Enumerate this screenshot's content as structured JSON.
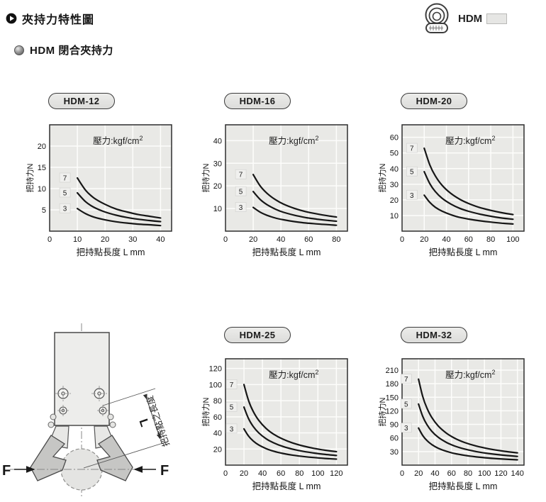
{
  "page": {
    "header": {
      "title": "夾持力特性圖"
    },
    "brand": {
      "name": "HDM"
    },
    "section": {
      "title": "HDM 閉合夾持力"
    }
  },
  "diagram": {
    "force_label_left": "F",
    "force_label_right": "F",
    "dim_label": "L",
    "dim_text": "把持點之長度"
  },
  "chart_data": [
    {
      "type": "line",
      "title": "HDM-12",
      "annotation": "壓力:kgf/cm",
      "annotation_sup": "2",
      "xlabel": "把持點長度 L mm",
      "ylabel": "把持力N",
      "xlim": [
        0,
        44
      ],
      "ylim": [
        0,
        25
      ],
      "x_ticks": [
        0,
        10,
        20,
        30,
        40
      ],
      "y_ticks": [
        5,
        10,
        15,
        20
      ],
      "grid": true,
      "legend_note": "curve labels are pressure in kgf/cm2",
      "series": [
        {
          "name": "7",
          "points": [
            [
              10,
              12.5
            ],
            [
              13,
              9.6
            ],
            [
              16,
              7.8
            ],
            [
              20,
              6.3
            ],
            [
              24,
              5.2
            ],
            [
              28,
              4.5
            ],
            [
              32,
              3.9
            ],
            [
              36,
              3.5
            ],
            [
              40,
              3.1
            ]
          ]
        },
        {
          "name": "5",
          "points": [
            [
              10,
              9.0
            ],
            [
              13,
              6.9
            ],
            [
              16,
              5.6
            ],
            [
              20,
              4.5
            ],
            [
              24,
              3.75
            ],
            [
              28,
              3.2
            ],
            [
              32,
              2.8
            ],
            [
              36,
              2.5
            ],
            [
              40,
              2.25
            ]
          ]
        },
        {
          "name": "3",
          "points": [
            [
              10,
              5.3
            ],
            [
              13,
              4.1
            ],
            [
              16,
              3.3
            ],
            [
              20,
              2.65
            ],
            [
              24,
              2.2
            ],
            [
              28,
              1.9
            ],
            [
              32,
              1.65
            ],
            [
              36,
              1.5
            ],
            [
              40,
              1.3
            ]
          ]
        }
      ]
    },
    {
      "type": "line",
      "title": "HDM-16",
      "annotation": "壓力:kgf/cm",
      "annotation_sup": "2",
      "xlabel": "把持點長度 L mm",
      "ylabel": "把持力N",
      "xlim": [
        0,
        88
      ],
      "ylim": [
        0,
        47
      ],
      "x_ticks": [
        0,
        20,
        40,
        60,
        80
      ],
      "y_ticks": [
        10,
        20,
        30,
        40
      ],
      "grid": true,
      "series": [
        {
          "name": "7",
          "points": [
            [
              20,
              25
            ],
            [
              25,
              20
            ],
            [
              30,
              16.7
            ],
            [
              36,
              13.9
            ],
            [
              42,
              11.9
            ],
            [
              50,
              10
            ],
            [
              58,
              8.6
            ],
            [
              66,
              7.6
            ],
            [
              73,
              6.85
            ],
            [
              80,
              6.25
            ]
          ]
        },
        {
          "name": "5",
          "points": [
            [
              20,
              17.5
            ],
            [
              25,
              14
            ],
            [
              30,
              11.7
            ],
            [
              36,
              9.7
            ],
            [
              42,
              8.3
            ],
            [
              50,
              7
            ],
            [
              58,
              6
            ],
            [
              66,
              5.3
            ],
            [
              73,
              4.8
            ],
            [
              80,
              4.4
            ]
          ]
        },
        {
          "name": "3",
          "points": [
            [
              20,
              10.5
            ],
            [
              25,
              8.4
            ],
            [
              30,
              7
            ],
            [
              36,
              5.8
            ],
            [
              42,
              5
            ],
            [
              50,
              4.2
            ],
            [
              58,
              3.6
            ],
            [
              66,
              3.2
            ],
            [
              73,
              2.9
            ],
            [
              80,
              2.6
            ]
          ]
        }
      ]
    },
    {
      "type": "line",
      "title": "HDM-20",
      "annotation": "壓力:kgf/cm",
      "annotation_sup": "2",
      "xlabel": "把持點長度 L mm",
      "ylabel": "把持力N",
      "xlim": [
        0,
        110
      ],
      "ylim": [
        0,
        68
      ],
      "x_ticks": [
        0,
        20,
        40,
        60,
        80,
        100
      ],
      "y_ticks": [
        10,
        20,
        30,
        40,
        50,
        60
      ],
      "grid": true,
      "series": [
        {
          "name": "7",
          "points": [
            [
              20,
              53
            ],
            [
              25,
              42.4
            ],
            [
              30,
              35.3
            ],
            [
              36,
              29.4
            ],
            [
              44,
              24.1
            ],
            [
              52,
              20.4
            ],
            [
              60,
              17.7
            ],
            [
              70,
              15.1
            ],
            [
              80,
              13.3
            ],
            [
              90,
              11.8
            ],
            [
              100,
              10.6
            ]
          ]
        },
        {
          "name": "5",
          "points": [
            [
              20,
              38
            ],
            [
              25,
              30.4
            ],
            [
              30,
              25.3
            ],
            [
              36,
              21.1
            ],
            [
              44,
              17.3
            ],
            [
              52,
              14.6
            ],
            [
              60,
              12.7
            ],
            [
              70,
              10.9
            ],
            [
              80,
              9.5
            ],
            [
              90,
              8.4
            ],
            [
              100,
              7.6
            ]
          ]
        },
        {
          "name": "3",
          "points": [
            [
              20,
              23
            ],
            [
              25,
              18.4
            ],
            [
              30,
              15.3
            ],
            [
              36,
              12.8
            ],
            [
              44,
              10.5
            ],
            [
              52,
              8.8
            ],
            [
              60,
              7.7
            ],
            [
              70,
              6.6
            ],
            [
              80,
              5.8
            ],
            [
              90,
              5.1
            ],
            [
              100,
              4.6
            ]
          ]
        }
      ]
    },
    {
      "type": "line",
      "title": "HDM-25",
      "annotation": "壓力:kgf/cm",
      "annotation_sup": "2",
      "xlabel": "把持點長度 L mm",
      "ylabel": "把持力N",
      "xlim": [
        0,
        132
      ],
      "ylim": [
        0,
        132
      ],
      "x_ticks": [
        0,
        20,
        40,
        60,
        80,
        100,
        120
      ],
      "y_ticks": [
        20,
        40,
        60,
        80,
        100,
        120
      ],
      "grid": true,
      "series": [
        {
          "name": "7",
          "points": [
            [
              20,
              100
            ],
            [
              25,
              80
            ],
            [
              30,
              66.7
            ],
            [
              36,
              55.6
            ],
            [
              44,
              45.5
            ],
            [
              52,
              38.5
            ],
            [
              62,
              32.3
            ],
            [
              72,
              27.8
            ],
            [
              84,
              23.8
            ],
            [
              96,
              20.8
            ],
            [
              108,
              18.5
            ],
            [
              120,
              16.7
            ]
          ]
        },
        {
          "name": "5",
          "points": [
            [
              20,
              72
            ],
            [
              25,
              57.6
            ],
            [
              30,
              48
            ],
            [
              36,
              40
            ],
            [
              44,
              32.7
            ],
            [
              52,
              27.7
            ],
            [
              62,
              23.2
            ],
            [
              72,
              20
            ],
            [
              84,
              17.1
            ],
            [
              96,
              15
            ],
            [
              108,
              13.3
            ],
            [
              120,
              12
            ]
          ]
        },
        {
          "name": "3",
          "points": [
            [
              20,
              45
            ],
            [
              25,
              36
            ],
            [
              30,
              30
            ],
            [
              36,
              25
            ],
            [
              44,
              20.5
            ],
            [
              52,
              17.3
            ],
            [
              62,
              14.5
            ],
            [
              72,
              12.5
            ],
            [
              84,
              10.7
            ],
            [
              96,
              9.4
            ],
            [
              108,
              8.3
            ],
            [
              120,
              7.5
            ]
          ]
        }
      ]
    },
    {
      "type": "line",
      "title": "HDM-32",
      "annotation": "壓力:kgf/cm",
      "annotation_sup": "2",
      "xlabel": "把持點長度 L mm",
      "ylabel": "把持力N",
      "xlim": [
        0,
        148
      ],
      "ylim": [
        0,
        235
      ],
      "x_ticks": [
        0,
        20,
        40,
        60,
        80,
        100,
        120,
        140
      ],
      "y_ticks": [
        30,
        60,
        90,
        120,
        150,
        180,
        210
      ],
      "grid": true,
      "series": [
        {
          "name": "7",
          "points": [
            [
              20,
              190
            ],
            [
              25,
              152
            ],
            [
              30,
              126.7
            ],
            [
              36,
              105.6
            ],
            [
              44,
              86.4
            ],
            [
              54,
              70.4
            ],
            [
              64,
              59.4
            ],
            [
              76,
              50
            ],
            [
              90,
              42.2
            ],
            [
              105,
              36.2
            ],
            [
              122,
              31.1
            ],
            [
              140,
              27.1
            ]
          ]
        },
        {
          "name": "5",
          "points": [
            [
              20,
              135
            ],
            [
              25,
              108
            ],
            [
              30,
              90
            ],
            [
              36,
              75
            ],
            [
              44,
              61.4
            ],
            [
              54,
              50
            ],
            [
              64,
              42.2
            ],
            [
              76,
              35.5
            ],
            [
              90,
              30
            ],
            [
              105,
              25.7
            ],
            [
              122,
              22.1
            ],
            [
              140,
              19.3
            ]
          ]
        },
        {
          "name": "3",
          "points": [
            [
              20,
              82
            ],
            [
              25,
              65.6
            ],
            [
              30,
              54.7
            ],
            [
              36,
              45.6
            ],
            [
              44,
              37.3
            ],
            [
              54,
              30.4
            ],
            [
              64,
              25.6
            ],
            [
              76,
              21.6
            ],
            [
              90,
              18.2
            ],
            [
              105,
              15.6
            ],
            [
              122,
              13.4
            ],
            [
              140,
              11.7
            ]
          ]
        }
      ]
    }
  ]
}
